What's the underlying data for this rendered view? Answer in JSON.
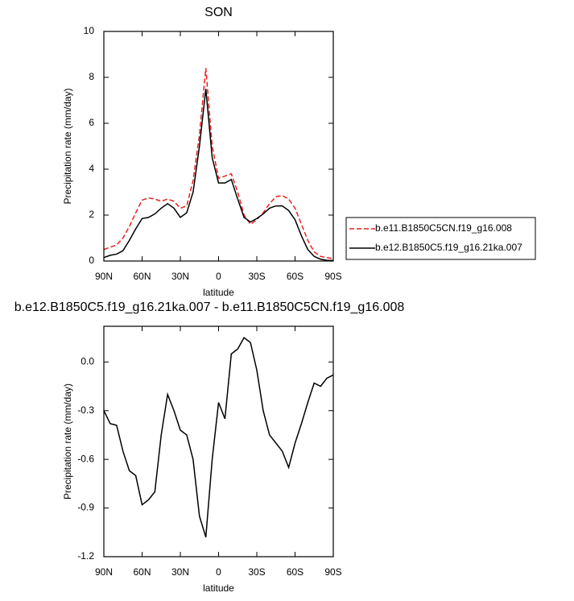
{
  "chart_data": [
    {
      "type": "line",
      "title": "SON",
      "xlabel": "latitude",
      "ylabel": "Precipitation rate (mm/day)",
      "x": [
        90,
        85,
        80,
        75,
        70,
        65,
        60,
        55,
        50,
        45,
        40,
        35,
        30,
        25,
        20,
        15,
        10,
        5,
        0,
        -5,
        -10,
        -15,
        -20,
        -25,
        -30,
        -35,
        -40,
        -45,
        -50,
        -55,
        -60,
        -65,
        -70,
        -75,
        -80,
        -85,
        -90
      ],
      "xlim": [
        90,
        -90
      ],
      "xticks": [
        {
          "value": 90,
          "label": "90N"
        },
        {
          "value": 60,
          "label": "60N"
        },
        {
          "value": 30,
          "label": "30N"
        },
        0,
        {
          "value": -30,
          "label": "30S"
        },
        {
          "value": -60,
          "label": "60S"
        },
        {
          "value": -90,
          "label": "90S"
        }
      ],
      "ylim": [
        0,
        10
      ],
      "yticks": [
        0,
        2,
        4,
        6,
        8,
        10
      ],
      "legend": "right",
      "series": [
        {
          "name": "b.e11.B1850C5CN.f19_g16.008",
          "color": "#e8211e",
          "linestyle": "dashed",
          "values": [
            0.5,
            0.6,
            0.7,
            1.0,
            1.5,
            2.1,
            2.65,
            2.75,
            2.7,
            2.6,
            2.7,
            2.6,
            2.3,
            2.4,
            3.5,
            5.5,
            8.4,
            5.0,
            3.6,
            3.7,
            3.8,
            3.0,
            2.0,
            1.6,
            1.8,
            2.1,
            2.5,
            2.8,
            2.85,
            2.7,
            2.3,
            1.6,
            0.9,
            0.4,
            0.2,
            0.15,
            0.1
          ]
        },
        {
          "name": "b.e12.B1850C5.f19_g16.21ka.007",
          "color": "#000000",
          "linestyle": "solid",
          "values": [
            0.15,
            0.25,
            0.3,
            0.45,
            0.9,
            1.4,
            1.85,
            1.9,
            2.05,
            2.3,
            2.5,
            2.3,
            1.9,
            2.1,
            3.0,
            5.0,
            7.5,
            4.5,
            3.4,
            3.4,
            3.55,
            2.7,
            1.9,
            1.7,
            1.85,
            2.05,
            2.3,
            2.4,
            2.4,
            2.2,
            1.8,
            1.1,
            0.5,
            0.2,
            0.08,
            0.03,
            0.02
          ]
        }
      ]
    },
    {
      "type": "line",
      "title": "b.e12.B1850C5.f19_g16.21ka.007 - b.e11.B1850C5CN.f19_g16.008",
      "xlabel": "latitude",
      "ylabel": "Precipitation rate (mm/day)",
      "x": [
        90,
        85,
        80,
        75,
        70,
        65,
        60,
        55,
        50,
        45,
        40,
        35,
        30,
        25,
        20,
        15,
        10,
        5,
        0,
        -5,
        -10,
        -15,
        -20,
        -25,
        -30,
        -35,
        -40,
        -45,
        -50,
        -55,
        -60,
        -65,
        -70,
        -75,
        -80,
        -85,
        -90
      ],
      "xlim": [
        90,
        -90
      ],
      "xticks": [
        {
          "value": 90,
          "label": "90N"
        },
        {
          "value": 60,
          "label": "60N"
        },
        {
          "value": 30,
          "label": "30N"
        },
        0,
        {
          "value": -30,
          "label": "30S"
        },
        {
          "value": -60,
          "label": "60S"
        },
        {
          "value": -90,
          "label": "90S"
        }
      ],
      "ylim": [
        -1.2,
        0.22
      ],
      "yticks": [
        {
          "value": 0,
          "label": "0.0"
        },
        -0.3,
        -0.6,
        -0.9,
        -1.2
      ],
      "series": [
        {
          "color": "#000000",
          "linestyle": "solid",
          "values": [
            -0.3,
            -0.38,
            -0.39,
            -0.55,
            -0.67,
            -0.7,
            -0.88,
            -0.85,
            -0.8,
            -0.45,
            -0.2,
            -0.3,
            -0.42,
            -0.45,
            -0.6,
            -0.95,
            -1.08,
            -0.6,
            -0.25,
            -0.35,
            0.05,
            0.08,
            0.15,
            0.12,
            -0.05,
            -0.3,
            -0.45,
            -0.5,
            -0.55,
            -0.65,
            -0.5,
            -0.38,
            -0.25,
            -0.13,
            -0.15,
            -0.1,
            -0.08
          ]
        }
      ]
    }
  ]
}
